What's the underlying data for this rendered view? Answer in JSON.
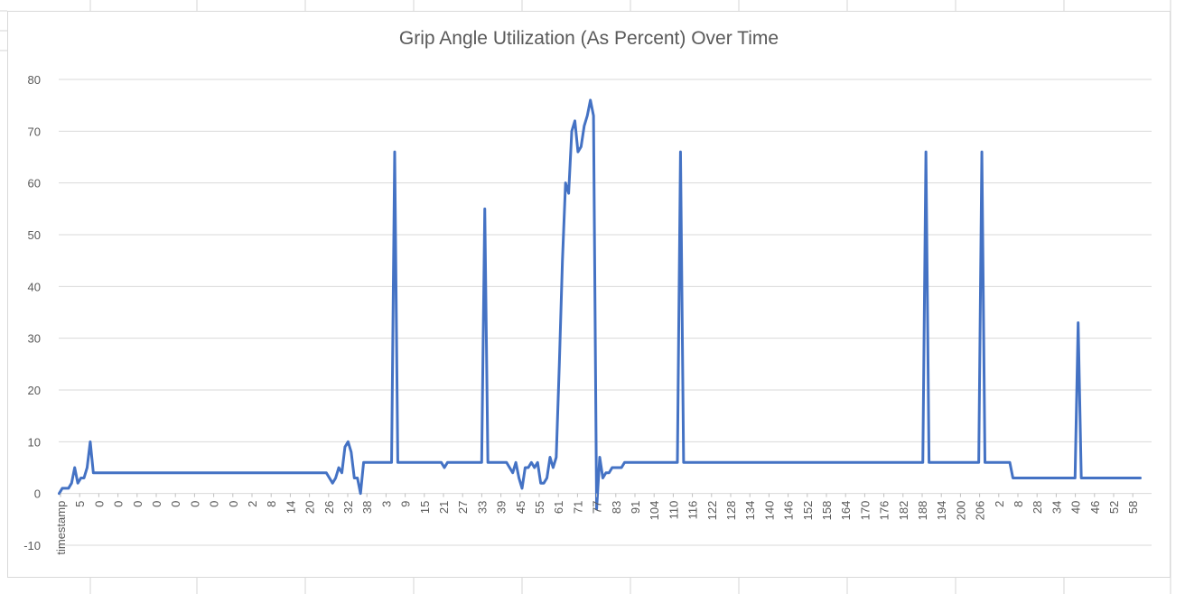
{
  "chart_data": {
    "type": "line",
    "title": "Grip Angle Utilization (As Percent) Over Time",
    "xlabel": "",
    "ylabel": "",
    "ylim": [
      -10,
      80
    ],
    "yticks": [
      -10,
      0,
      10,
      20,
      30,
      40,
      50,
      60,
      70,
      80
    ],
    "grid": true,
    "legend": "none",
    "colors": {
      "line": "#4472C4",
      "grid": "#d9d9d9",
      "text": "#595959"
    },
    "x_tick_labels": [
      "timestamp",
      "5",
      "0",
      "0",
      "0",
      "0",
      "0",
      "0",
      "0",
      "0",
      "2",
      "8",
      "14",
      "20",
      "26",
      "32",
      "38",
      "3",
      "9",
      "15",
      "21",
      "27",
      "33",
      "39",
      "45",
      "55",
      "61",
      "71",
      "77",
      "83",
      "91",
      "104",
      "110",
      "116",
      "122",
      "128",
      "134",
      "140",
      "146",
      "152",
      "158",
      "164",
      "170",
      "176",
      "182",
      "188",
      "194",
      "200",
      "206",
      "2",
      "8",
      "28",
      "34",
      "40",
      "46",
      "52",
      "58"
    ],
    "series": [
      {
        "values": [
          0,
          1,
          1,
          1,
          2,
          5,
          2,
          3,
          3,
          5,
          10,
          4,
          4,
          4,
          4,
          4,
          4,
          4,
          4,
          4,
          4,
          4,
          4,
          4,
          4,
          4,
          4,
          4,
          4,
          4,
          4,
          4,
          4,
          4,
          4,
          4,
          4,
          4,
          4,
          4,
          4,
          4,
          4,
          4,
          4,
          4,
          4,
          4,
          4,
          4,
          4,
          4,
          4,
          4,
          4,
          4,
          4,
          4,
          4,
          4,
          4,
          4,
          4,
          4,
          4,
          4,
          4,
          4,
          4,
          4,
          4,
          4,
          4,
          4,
          4,
          4,
          4,
          4,
          4,
          4,
          4,
          4,
          4,
          4,
          4,
          4,
          4,
          3,
          2,
          3,
          5,
          4,
          9,
          10,
          8,
          3,
          3,
          0,
          6,
          6,
          6,
          6,
          6,
          6,
          6,
          6,
          6,
          6,
          66,
          6,
          6,
          6,
          6,
          6,
          6,
          6,
          6,
          6,
          6,
          6,
          6,
          6,
          6,
          6,
          5,
          6,
          6,
          6,
          6,
          6,
          6,
          6,
          6,
          6,
          6,
          6,
          6,
          55,
          6,
          6,
          6,
          6,
          6,
          6,
          6,
          5,
          4,
          6,
          3,
          1,
          5,
          5,
          6,
          5,
          6,
          2,
          2,
          3,
          7,
          5,
          7,
          25,
          45,
          60,
          58,
          70,
          72,
          66,
          67,
          71,
          73,
          76,
          73,
          -3,
          7,
          3,
          4,
          4,
          5,
          5,
          5,
          5,
          6,
          6,
          6,
          6,
          6,
          6,
          6,
          6,
          6,
          6,
          6,
          6,
          6,
          6,
          6,
          6,
          6,
          6,
          66,
          6,
          6,
          6,
          6,
          6,
          6,
          6,
          6,
          6,
          6,
          6,
          6,
          6,
          6,
          6,
          6,
          6,
          6,
          6,
          6,
          6,
          6,
          6,
          6,
          6,
          6,
          6,
          6,
          6,
          6,
          6,
          6,
          6,
          6,
          6,
          6,
          6,
          6,
          6,
          6,
          6,
          6,
          6,
          6,
          6,
          6,
          6,
          6,
          6,
          6,
          6,
          6,
          6,
          6,
          6,
          6,
          6,
          6,
          6,
          6,
          6,
          6,
          6,
          6,
          6,
          6,
          6,
          6,
          6,
          6,
          6,
          6,
          6,
          6,
          6,
          6,
          6,
          6,
          66,
          6,
          6,
          6,
          6,
          6,
          6,
          6,
          6,
          6,
          6,
          6,
          6,
          6,
          6,
          6,
          6,
          6,
          66,
          6,
          6,
          6,
          6,
          6,
          6,
          6,
          6,
          6,
          3,
          3,
          3,
          3,
          3,
          3,
          3,
          3,
          3,
          3,
          3,
          3,
          3,
          3,
          3,
          3,
          3,
          3,
          3,
          3,
          3,
          33,
          3,
          3,
          3,
          3,
          3,
          3,
          3,
          3,
          3,
          3,
          3,
          3,
          3,
          3,
          3,
          3,
          3,
          3,
          3,
          3
        ]
      }
    ]
  }
}
